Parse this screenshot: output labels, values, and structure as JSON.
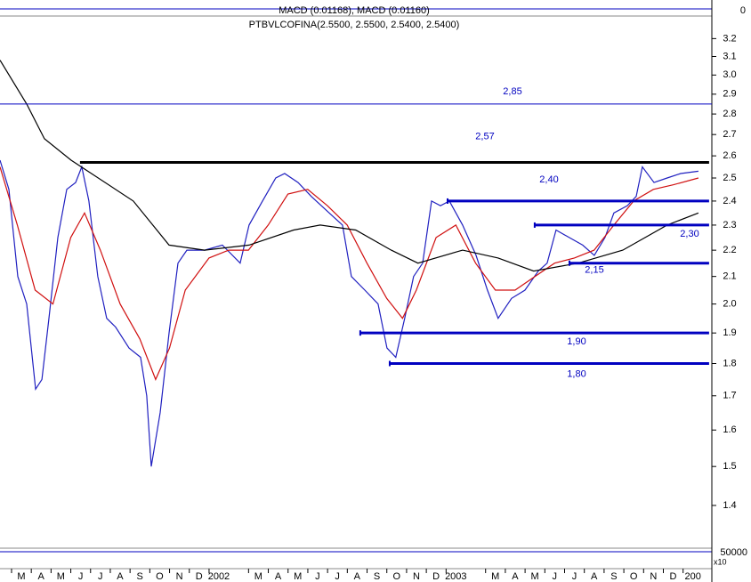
{
  "chart_data": {
    "type": "line",
    "title": "PTBVLCOFINA(2.5500, 2.5500, 2.5400, 2.5400)",
    "indicator_title": "MACD (0.01168), MACD (0.01160)",
    "indicator_axis_label": "0",
    "volume_axis_label": "50000",
    "volume_multiplier": "x10",
    "log_scale": true,
    "xlim": [
      -0.08,
      35.96
    ],
    "ylim": [
      1.3,
      3.32
    ],
    "yticks": [
      1.4,
      1.5,
      1.6,
      1.7,
      1.8,
      1.9,
      {
        "value": 2.0,
        "label": "2.0"
      },
      2.1,
      2.2,
      2.3,
      2.4,
      2.5,
      2.6,
      2.7,
      2.8,
      2.9,
      {
        "value": 3.0,
        "label": "3.0"
      },
      3.1,
      3.2
    ],
    "xticks": [
      {
        "value": 1,
        "label": "M"
      },
      {
        "value": 2,
        "label": "A"
      },
      {
        "value": 3,
        "label": "M"
      },
      {
        "value": 4,
        "label": "J"
      },
      {
        "value": 5,
        "label": "J"
      },
      {
        "value": 6,
        "label": "A"
      },
      {
        "value": 7,
        "label": "S"
      },
      {
        "value": 8,
        "label": "O"
      },
      {
        "value": 9,
        "label": "N"
      },
      {
        "value": 10,
        "label": "D"
      },
      {
        "value": 11,
        "label": "2002"
      },
      {
        "value": 13,
        "label": "M"
      },
      {
        "value": 14,
        "label": "A"
      },
      {
        "value": 15,
        "label": "M"
      },
      {
        "value": 16,
        "label": "J"
      },
      {
        "value": 17,
        "label": "J"
      },
      {
        "value": 18,
        "label": "A"
      },
      {
        "value": 19,
        "label": "S"
      },
      {
        "value": 20,
        "label": "O"
      },
      {
        "value": 21,
        "label": "N"
      },
      {
        "value": 22,
        "label": "D"
      },
      {
        "value": 23,
        "label": "2003"
      },
      {
        "value": 25,
        "label": "M"
      },
      {
        "value": 26,
        "label": "A"
      },
      {
        "value": 27,
        "label": "M"
      },
      {
        "value": 28,
        "label": "J"
      },
      {
        "value": 29,
        "label": "J"
      },
      {
        "value": 30,
        "label": "A"
      },
      {
        "value": 31,
        "label": "S"
      },
      {
        "value": 32,
        "label": "O"
      },
      {
        "value": 33,
        "label": "N"
      },
      {
        "value": 34,
        "label": "D"
      },
      {
        "value": 35,
        "label": "200"
      }
    ],
    "series": [
      {
        "color": "#2020c0",
        "x": [
          -0.08,
          0.37,
          0.82,
          1.27,
          1.72,
          2.04,
          2.4,
          2.85,
          3.3,
          3.75,
          4.06,
          4.42,
          4.87,
          5.32,
          5.77,
          6.45,
          7.04,
          7.35,
          7.58,
          8.03,
          8.48,
          8.93,
          9.38,
          10.28,
          11.18,
          12.08,
          12.53,
          13.21,
          13.88,
          14.33,
          15.01,
          15.68,
          16.59,
          17.26,
          17.71,
          18.39,
          19.06,
          19.51,
          19.96,
          20.41,
          20.86,
          21.32,
          21.77,
          22.22,
          22.67,
          23.34,
          24.02,
          24.6,
          25.14,
          25.82,
          26.5,
          27.17,
          27.62,
          28.07,
          28.74,
          29.42,
          30.01,
          30.55,
          31.0,
          31.68,
          32.13,
          32.44,
          33.03,
          33.7,
          34.38,
          35.28
        ],
        "values": [
          2.58,
          2.45,
          2.1,
          2.0,
          1.72,
          1.75,
          1.95,
          2.25,
          2.45,
          2.48,
          2.55,
          2.4,
          2.1,
          1.95,
          1.92,
          1.85,
          1.82,
          1.7,
          1.5,
          1.65,
          1.9,
          2.15,
          2.2,
          2.2,
          2.22,
          2.15,
          2.3,
          2.4,
          2.5,
          2.52,
          2.48,
          2.42,
          2.35,
          2.3,
          2.1,
          2.05,
          2.0,
          1.85,
          1.82,
          1.95,
          2.1,
          2.15,
          2.4,
          2.38,
          2.4,
          2.3,
          2.18,
          2.05,
          1.95,
          2.02,
          2.05,
          2.12,
          2.15,
          2.28,
          2.25,
          2.22,
          2.18,
          2.25,
          2.35,
          2.38,
          2.42,
          2.55,
          2.48,
          2.5,
          2.52,
          2.53
        ]
      },
      {
        "color": "#d01010",
        "x": [
          -0.08,
          0.8,
          1.7,
          2.6,
          3.5,
          4.2,
          5.0,
          6.0,
          7.0,
          7.8,
          8.5,
          9.3,
          10.5,
          11.5,
          12.5,
          13.5,
          14.5,
          15.5,
          16.5,
          17.5,
          18.5,
          19.5,
          20.3,
          21.0,
          22.0,
          23.0,
          24.0,
          25.0,
          26.0,
          27.0,
          28.0,
          29.0,
          30.0,
          31.0,
          32.0,
          33.0,
          34.0,
          35.28
        ],
        "values": [
          2.55,
          2.3,
          2.05,
          2.0,
          2.25,
          2.35,
          2.2,
          2.0,
          1.88,
          1.75,
          1.85,
          2.05,
          2.17,
          2.2,
          2.2,
          2.3,
          2.43,
          2.45,
          2.38,
          2.3,
          2.15,
          2.02,
          1.95,
          2.05,
          2.25,
          2.3,
          2.15,
          2.05,
          2.05,
          2.1,
          2.15,
          2.17,
          2.2,
          2.3,
          2.4,
          2.45,
          2.47,
          2.5
        ]
      },
      {
        "color": "#000000",
        "x": [
          -0.08,
          1.27,
          2.17,
          3.52,
          6.67,
          8.48,
          10.28,
          12.53,
          14.78,
          16.13,
          17.93,
          19.73,
          21.08,
          23.34,
          25.14,
          26.94,
          29.19,
          31.45,
          33.7,
          35.28
        ],
        "values": [
          3.08,
          2.85,
          2.68,
          2.58,
          2.4,
          2.22,
          2.2,
          2.22,
          2.28,
          2.3,
          2.28,
          2.2,
          2.15,
          2.2,
          2.17,
          2.12,
          2.15,
          2.2,
          2.3,
          2.35
        ]
      }
    ],
    "hlines": [
      {
        "value": 2.85,
        "label": "2,85",
        "color": "#0000c0",
        "bold": false,
        "x_start": -0.08,
        "x_end": 35.96
      },
      {
        "value": 2.57,
        "label": "2,57",
        "color": "#000000",
        "bold": true,
        "x_start": 3.97,
        "x_end": 35.82
      },
      {
        "value": 2.4,
        "label": "2,40",
        "color": "#0000c0",
        "bold": true,
        "x_start": 22.58,
        "x_end": 35.82
      },
      {
        "value": 2.3,
        "label": "2,30",
        "color": "#0000c0",
        "bold": true,
        "x_start": 26.99,
        "x_end": 35.82
      },
      {
        "value": 2.15,
        "label": "2,15",
        "color": "#0000c0",
        "bold": true,
        "x_start": 28.75,
        "x_end": 35.82
      },
      {
        "value": 1.9,
        "label": "1,90",
        "color": "#0000c0",
        "bold": true,
        "x_start": 18.16,
        "x_end": 35.82
      },
      {
        "value": 1.8,
        "label": "1,80",
        "color": "#0000c0",
        "bold": true,
        "x_start": 19.65,
        "x_end": 35.82
      }
    ]
  }
}
